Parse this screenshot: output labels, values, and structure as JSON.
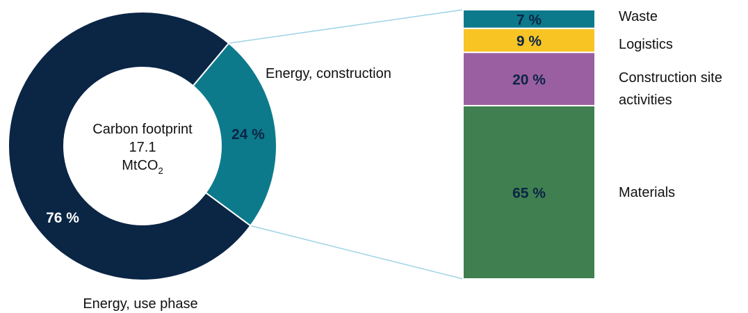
{
  "chart_data": [
    {
      "type": "pie",
      "donut": true,
      "center_text": {
        "line1": "Carbon footprint",
        "line2": "17.1",
        "unit_base": "MtCO",
        "unit_sub": "2"
      },
      "slices": [
        {
          "label": "Energy, use phase",
          "value": 76,
          "value_label": "76 %",
          "color": "#0b2545"
        },
        {
          "label": "Energy, construction",
          "value": 24,
          "value_label": "24 %",
          "color": "#0d7a8c"
        }
      ]
    },
    {
      "type": "bar",
      "stacked": true,
      "breakdown_of": "Energy, construction",
      "segments": [
        {
          "label": "Waste",
          "value": 7,
          "value_label": "7 %",
          "color": "#0d7a8c"
        },
        {
          "label": "Logistics",
          "value": 9,
          "value_label": "9 %",
          "color": "#f7c424"
        },
        {
          "label": "Construction site activities",
          "value": 20,
          "value_label": "20 %",
          "color": "#9a5fa0"
        },
        {
          "label": "Materials",
          "value": 65,
          "value_label": "65 %",
          "color": "#3f7f50"
        }
      ],
      "connector_color": "#9ed3e6",
      "value_label_color": "#0b2545"
    }
  ]
}
